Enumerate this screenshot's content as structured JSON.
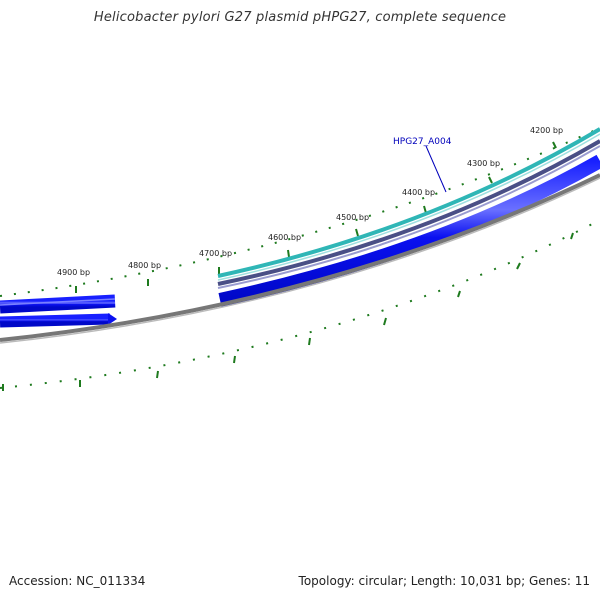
{
  "title": "Helicobacter pylori G27 plasmid pHPG27, complete sequence",
  "footer": {
    "accession": "Accession: NC_011334",
    "summary": "Topology: circular; Length: 10,031 bp; Genes: 11"
  },
  "colors": {
    "gene_fill": "#0a10f0",
    "gene_highlight": "#6a70ff",
    "tick": "#1e7a1e",
    "backbone": "#777777",
    "teal_track": "#2fb6b6",
    "slate_track": "#4a4f86",
    "label_blue": "#0000bb"
  },
  "ticks": [
    {
      "label": "4200 bp"
    },
    {
      "label": "4300 bp"
    },
    {
      "label": "4400 bp"
    },
    {
      "label": "4500 bp"
    },
    {
      "label": "4600 bp"
    },
    {
      "label": "4700 bp"
    },
    {
      "label": "4800 bp"
    },
    {
      "label": "4900 bp"
    }
  ],
  "genes": [
    {
      "label": "HPG27_A004"
    }
  ]
}
